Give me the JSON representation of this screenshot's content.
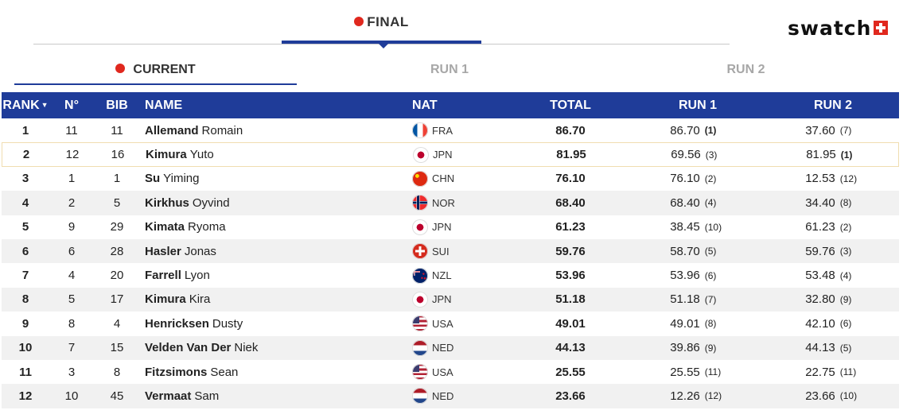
{
  "header": {
    "final_label": "FINAL",
    "brand_word": "swatch"
  },
  "tabs": {
    "current": "CURRENT",
    "run1": "RUN 1",
    "run2": "RUN 2"
  },
  "columns": {
    "rank": "RANK",
    "no": "N°",
    "bib": "BIB",
    "name": "NAME",
    "nat": "NAT",
    "total": "TOTAL",
    "run1": "RUN 1",
    "run2": "RUN 2"
  },
  "colors": {
    "accent_blue": "#1f3c99",
    "live_red": "#e0281e",
    "row_alt": "#f1f1f1",
    "highlight_border": "#f0ddb0"
  },
  "rows": [
    {
      "rank": "1",
      "no": "11",
      "bib": "11",
      "last": "Allemand",
      "first": "Romain",
      "nat": "FRA",
      "total": "86.70",
      "run1": "86.70",
      "run1_pos": "(1)",
      "run2": "37.60",
      "run2_pos": "(7)"
    },
    {
      "rank": "2",
      "no": "12",
      "bib": "16",
      "last": "Kimura",
      "first": "Yuto",
      "nat": "JPN",
      "total": "81.95",
      "run1": "69.56",
      "run1_pos": "(3)",
      "run2": "81.95",
      "run2_pos": "(1)"
    },
    {
      "rank": "3",
      "no": "1",
      "bib": "1",
      "last": "Su",
      "first": "Yiming",
      "nat": "CHN",
      "total": "76.10",
      "run1": "76.10",
      "run1_pos": "(2)",
      "run2": "12.53",
      "run2_pos": "(12)"
    },
    {
      "rank": "4",
      "no": "2",
      "bib": "5",
      "last": "Kirkhus",
      "first": "Oyvind",
      "nat": "NOR",
      "total": "68.40",
      "run1": "68.40",
      "run1_pos": "(4)",
      "run2": "34.40",
      "run2_pos": "(8)"
    },
    {
      "rank": "5",
      "no": "9",
      "bib": "29",
      "last": "Kimata",
      "first": "Ryoma",
      "nat": "JPN",
      "total": "61.23",
      "run1": "38.45",
      "run1_pos": "(10)",
      "run2": "61.23",
      "run2_pos": "(2)"
    },
    {
      "rank": "6",
      "no": "6",
      "bib": "28",
      "last": "Hasler",
      "first": "Jonas",
      "nat": "SUI",
      "total": "59.76",
      "run1": "58.70",
      "run1_pos": "(5)",
      "run2": "59.76",
      "run2_pos": "(3)"
    },
    {
      "rank": "7",
      "no": "4",
      "bib": "20",
      "last": "Farrell",
      "first": "Lyon",
      "nat": "NZL",
      "total": "53.96",
      "run1": "53.96",
      "run1_pos": "(6)",
      "run2": "53.48",
      "run2_pos": "(4)"
    },
    {
      "rank": "8",
      "no": "5",
      "bib": "17",
      "last": "Kimura",
      "first": "Kira",
      "nat": "JPN",
      "total": "51.18",
      "run1": "51.18",
      "run1_pos": "(7)",
      "run2": "32.80",
      "run2_pos": "(9)"
    },
    {
      "rank": "9",
      "no": "8",
      "bib": "4",
      "last": "Henricksen",
      "first": "Dusty",
      "nat": "USA",
      "total": "49.01",
      "run1": "49.01",
      "run1_pos": "(8)",
      "run2": "42.10",
      "run2_pos": "(6)"
    },
    {
      "rank": "10",
      "no": "7",
      "bib": "15",
      "last": "Velden Van Der",
      "first": "Niek",
      "nat": "NED",
      "total": "44.13",
      "run1": "39.86",
      "run1_pos": "(9)",
      "run2": "44.13",
      "run2_pos": "(5)"
    },
    {
      "rank": "11",
      "no": "3",
      "bib": "8",
      "last": "Fitzsimons",
      "first": "Sean",
      "nat": "USA",
      "total": "25.55",
      "run1": "25.55",
      "run1_pos": "(11)",
      "run2": "22.75",
      "run2_pos": "(11)"
    },
    {
      "rank": "12",
      "no": "10",
      "bib": "45",
      "last": "Vermaat",
      "first": "Sam",
      "nat": "NED",
      "total": "23.66",
      "run1": "12.26",
      "run1_pos": "(12)",
      "run2": "23.66",
      "run2_pos": "(10)"
    }
  ]
}
